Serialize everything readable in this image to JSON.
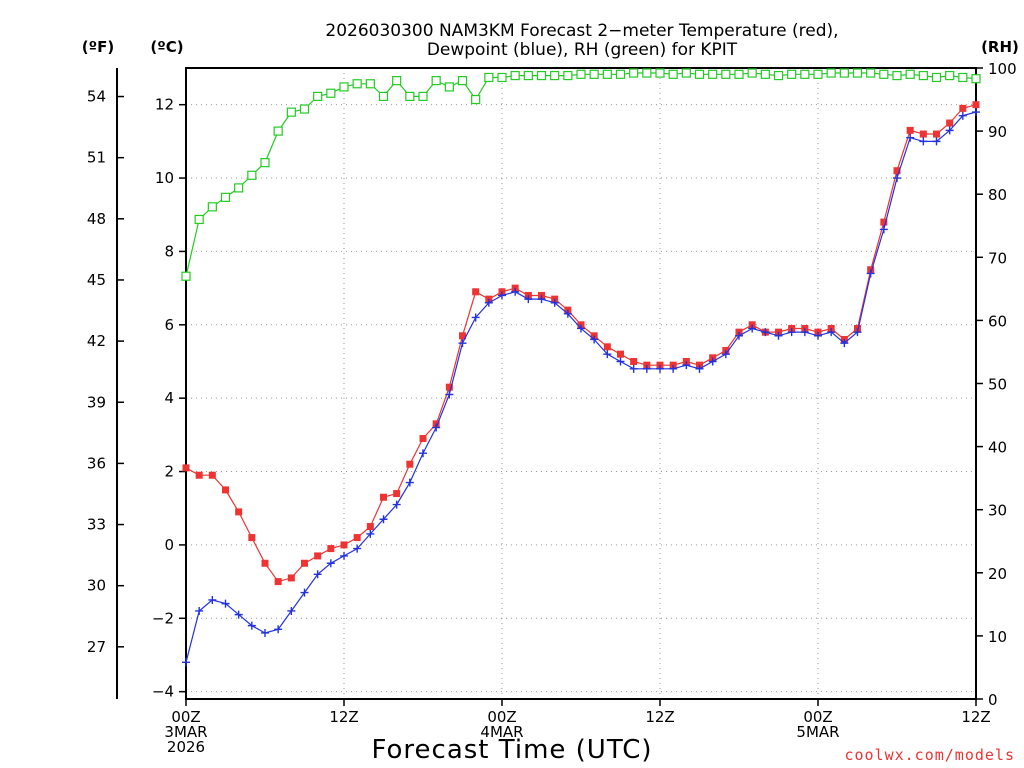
{
  "chart_data": {
    "type": "line",
    "title": [
      "2026030300 NAM3KM Forecast 2−meter Temperature (red),",
      "Dewpoint (blue), RH (green) for KPIT"
    ],
    "xlabel": "Forecast Time (UTC)",
    "credit": "coolwx.com/models",
    "units": {
      "fahrenheit": "(ºF)",
      "celsius": "(ºC)",
      "rh": "(RH)"
    },
    "colors": {
      "temperature": "#ee3333",
      "dewpoint": "#2233dd",
      "rh": "#22cc22",
      "grid": "#999999"
    },
    "x_range_hours": [
      0,
      60
    ],
    "celsius_range": [
      -4.2,
      13
    ],
    "rh_range": [
      0,
      100
    ],
    "x_ticks": [
      {
        "hour": 0,
        "lines": [
          "00Z",
          "3MAR",
          "2026"
        ]
      },
      {
        "hour": 12,
        "lines": [
          "12Z"
        ]
      },
      {
        "hour": 24,
        "lines": [
          "00Z",
          "4MAR"
        ]
      },
      {
        "hour": 36,
        "lines": [
          "12Z"
        ]
      },
      {
        "hour": 48,
        "lines": [
          "00Z",
          "5MAR"
        ]
      },
      {
        "hour": 60,
        "lines": [
          "12Z"
        ]
      }
    ],
    "celsius_ticks": [
      -4,
      -2,
      0,
      2,
      4,
      6,
      8,
      10,
      12
    ],
    "fahrenheit_ticks": [
      27,
      30,
      33,
      36,
      39,
      42,
      45,
      48,
      51,
      54
    ],
    "rh_ticks": [
      0,
      10,
      20,
      30,
      40,
      50,
      60,
      70,
      80,
      90,
      100
    ],
    "series": [
      {
        "name": "Temperature (red)",
        "axis": "celsius",
        "marker": "square-filled",
        "values": [
          2.1,
          1.9,
          1.9,
          1.5,
          0.9,
          0.2,
          -0.5,
          -1.0,
          -0.9,
          -0.5,
          -0.3,
          -0.1,
          0.0,
          0.2,
          0.5,
          1.3,
          1.4,
          2.2,
          2.9,
          3.3,
          4.3,
          5.7,
          6.9,
          6.7,
          6.9,
          7.0,
          6.8,
          6.8,
          6.7,
          6.4,
          6.0,
          5.7,
          5.4,
          5.2,
          5.0,
          4.9,
          4.9,
          4.9,
          5.0,
          4.9,
          5.1,
          5.3,
          5.8,
          6.0,
          5.8,
          5.8,
          5.9,
          5.9,
          5.8,
          5.9,
          5.6,
          5.9,
          7.5,
          8.8,
          10.2,
          11.3,
          11.2,
          11.2,
          11.5,
          11.9,
          12.0
        ],
        "sample_hours": [
          0,
          1,
          2,
          3,
          4,
          5,
          6,
          7,
          8,
          9,
          10,
          11,
          12,
          13,
          14,
          15,
          16,
          17,
          18,
          19,
          20,
          21,
          22,
          23,
          24,
          25,
          26,
          27,
          28,
          29,
          30,
          31,
          32,
          33,
          34,
          35,
          36,
          37,
          38,
          39,
          40,
          41,
          42,
          43,
          44,
          45,
          46,
          47,
          48,
          49,
          50,
          51,
          52,
          53,
          54,
          55,
          56,
          57,
          58,
          59,
          60
        ]
      },
      {
        "name": "Dewpoint (blue)",
        "axis": "celsius",
        "marker": "plus",
        "values": [
          -3.2,
          -1.8,
          -1.5,
          -1.6,
          -1.9,
          -2.2,
          -2.4,
          -2.3,
          -1.8,
          -1.3,
          -0.8,
          -0.5,
          -0.3,
          -0.1,
          0.3,
          0.7,
          1.1,
          1.7,
          2.5,
          3.2,
          4.1,
          5.5,
          6.2,
          6.6,
          6.8,
          6.9,
          6.7,
          6.7,
          6.6,
          6.3,
          5.9,
          5.6,
          5.2,
          5.0,
          4.8,
          4.8,
          4.8,
          4.8,
          4.9,
          4.8,
          5.0,
          5.2,
          5.7,
          5.9,
          5.8,
          5.7,
          5.8,
          5.8,
          5.7,
          5.8,
          5.5,
          5.8,
          7.4,
          8.6,
          10.0,
          11.1,
          11.0,
          11.0,
          11.3,
          11.7,
          11.8
        ],
        "sample_hours": [
          0,
          1,
          2,
          3,
          4,
          5,
          6,
          7,
          8,
          9,
          10,
          11,
          12,
          13,
          14,
          15,
          16,
          17,
          18,
          19,
          20,
          21,
          22,
          23,
          24,
          25,
          26,
          27,
          28,
          29,
          30,
          31,
          32,
          33,
          34,
          35,
          36,
          37,
          38,
          39,
          40,
          41,
          42,
          43,
          44,
          45,
          46,
          47,
          48,
          49,
          50,
          51,
          52,
          53,
          54,
          55,
          56,
          57,
          58,
          59,
          60
        ]
      },
      {
        "name": "RH (green)",
        "axis": "rh",
        "marker": "square-open",
        "values": [
          67,
          76,
          78,
          79.5,
          81,
          83,
          85,
          90,
          93,
          93.5,
          95.5,
          96,
          97,
          97.5,
          97.5,
          95.5,
          98,
          95.5,
          95.5,
          98,
          97,
          98,
          95,
          98.5,
          98.5,
          98.8,
          98.8,
          98.8,
          98.8,
          98.8,
          99,
          99,
          99,
          99,
          99.2,
          99.2,
          99.2,
          99,
          99.2,
          99,
          99,
          99,
          99,
          99.2,
          99,
          98.8,
          99,
          99,
          99,
          99.2,
          99.2,
          99.2,
          99.2,
          99,
          98.8,
          99,
          98.8,
          98.5,
          98.8,
          98.5,
          98.3
        ],
        "sample_hours": [
          0,
          1,
          2,
          3,
          4,
          5,
          6,
          7,
          8,
          9,
          10,
          11,
          12,
          13,
          14,
          15,
          16,
          17,
          18,
          19,
          20,
          21,
          22,
          23,
          24,
          25,
          26,
          27,
          28,
          29,
          30,
          31,
          32,
          33,
          34,
          35,
          36,
          37,
          38,
          39,
          40,
          41,
          42,
          43,
          44,
          45,
          46,
          47,
          48,
          49,
          50,
          51,
          52,
          53,
          54,
          55,
          56,
          57,
          58,
          59,
          60
        ]
      }
    ]
  }
}
